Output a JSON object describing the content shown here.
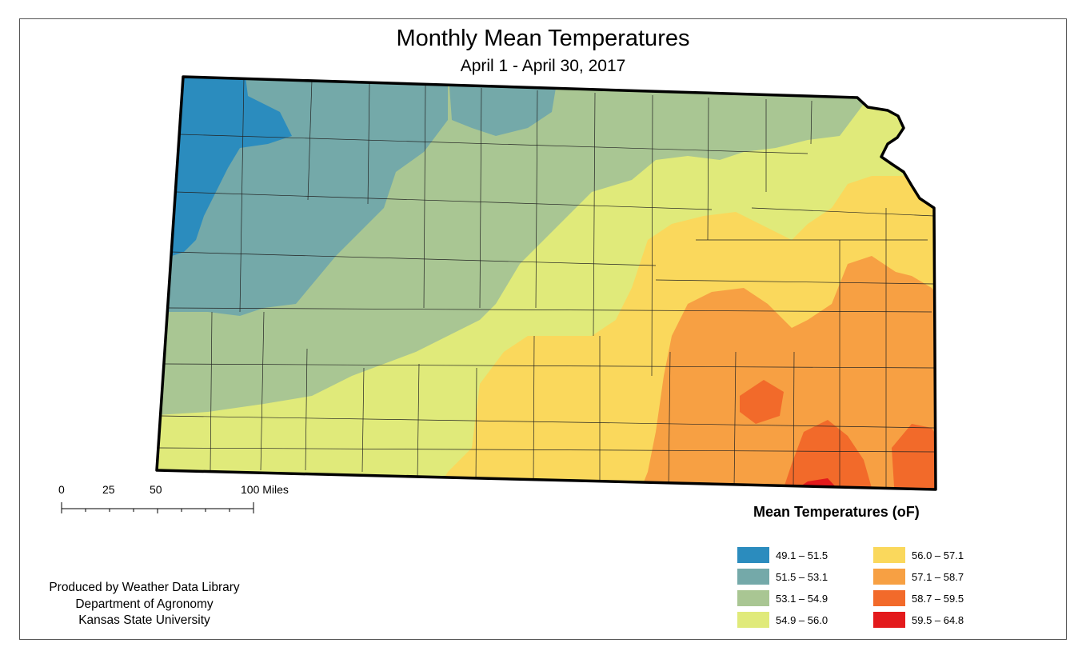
{
  "map": {
    "title": "Monthly Mean Temperatures",
    "subtitle": "April 1 - April 30, 2017",
    "legend_title": "Mean Temperatures (oF)",
    "legend": [
      {
        "label": "49.1 – 51.5",
        "color": "#2b8cbe"
      },
      {
        "label": "51.5 – 53.1",
        "color": "#74a9a9"
      },
      {
        "label": "53.1 – 54.9",
        "color": "#a9c693"
      },
      {
        "label": "54.9 – 56.0",
        "color": "#e0ea7a"
      },
      {
        "label": "56.0 – 57.1",
        "color": "#fad85c"
      },
      {
        "label": "57.1 – 58.7",
        "color": "#f7a043"
      },
      {
        "label": "58.7 – 59.5",
        "color": "#f26a2a"
      },
      {
        "label": "59.5 – 64.8",
        "color": "#e31a1c"
      }
    ],
    "scale": {
      "ticks": [
        "0",
        "25",
        "50",
        "100 Miles"
      ]
    },
    "credits": [
      "Produced by Weather Data Library",
      "Department of Agronomy",
      "Kansas State University"
    ],
    "region": "Kansas"
  }
}
